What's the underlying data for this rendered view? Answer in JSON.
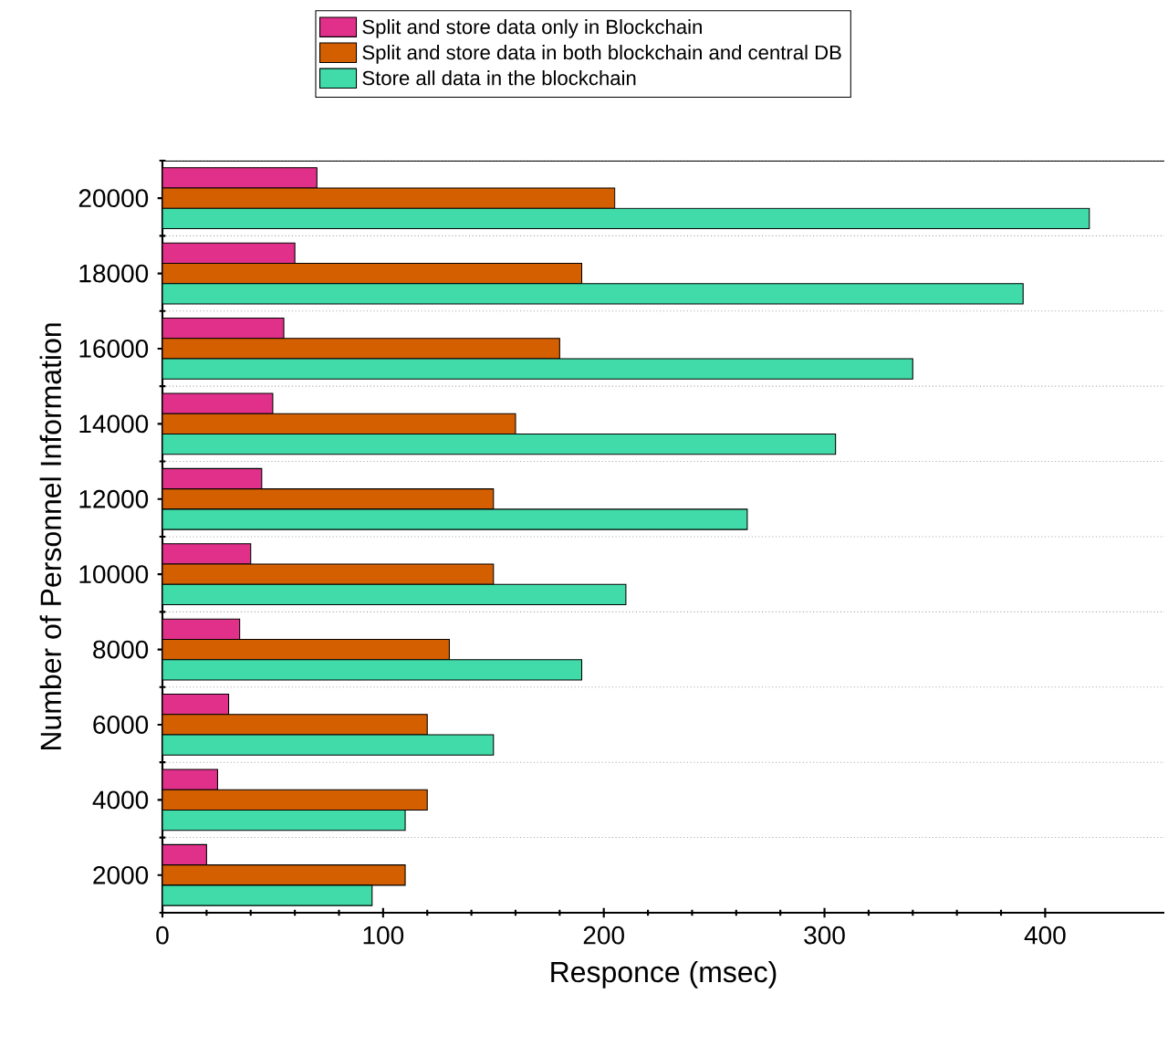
{
  "chart_data": {
    "type": "bar",
    "orientation": "horizontal",
    "xlabel": "Responce (msec)",
    "ylabel": "Number of Personnel Information",
    "categories": [
      "20000",
      "18000",
      "16000",
      "14000",
      "12000",
      "10000",
      "8000",
      "6000",
      "4000",
      "2000"
    ],
    "series": [
      {
        "name": "Split and store data only in Blockchain",
        "color": "#e0308a",
        "values": [
          70,
          60,
          55,
          50,
          45,
          40,
          35,
          30,
          25,
          20
        ]
      },
      {
        "name": "Split and store data in both blockchain and central DB",
        "color": "#d45f00",
        "values": [
          205,
          190,
          180,
          160,
          150,
          150,
          130,
          120,
          120,
          110
        ]
      },
      {
        "name": "Store all data in the blockchain",
        "color": "#40dba8",
        "values": [
          420,
          390,
          340,
          305,
          265,
          210,
          190,
          150,
          110,
          95
        ]
      }
    ],
    "xlim": [
      0,
      454
    ],
    "xticks": [
      0,
      100,
      200,
      300,
      400
    ],
    "grid": "y",
    "legend": "top"
  }
}
